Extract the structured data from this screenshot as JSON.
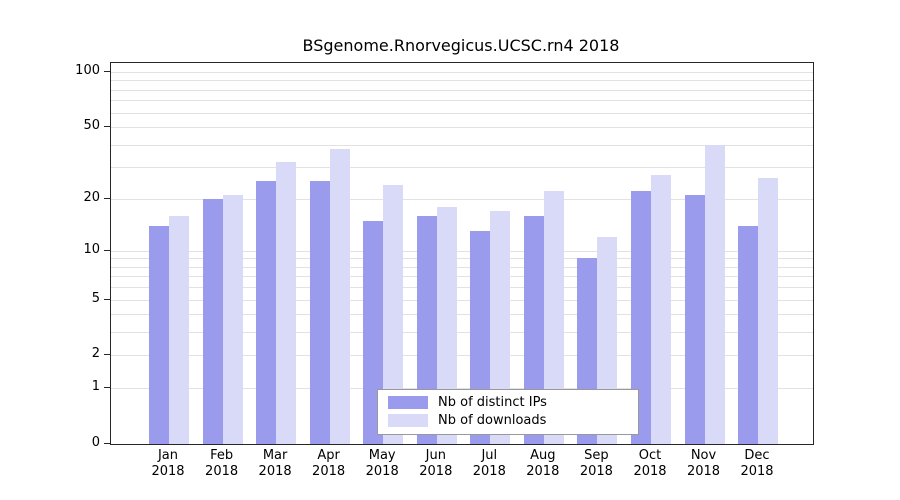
{
  "chart_data": {
    "type": "bar",
    "title": "BSgenome.Rnorvegicus.UCSC.rn4 2018",
    "scale": "log1p",
    "grid": true,
    "legend_position": "bottom-center-inside",
    "categories": [
      "Jan",
      "Feb",
      "Mar",
      "Apr",
      "May",
      "Jun",
      "Jul",
      "Aug",
      "Sep",
      "Oct",
      "Nov",
      "Dec"
    ],
    "x_year_label": "2018",
    "y_ticks": [
      100,
      50,
      20,
      10,
      5,
      2,
      1,
      0
    ],
    "ylim": [
      0,
      110
    ],
    "series": [
      {
        "name": "Nb of distinct IPs",
        "color": "#9b9bee",
        "values": [
          14,
          20,
          25,
          25,
          15,
          16,
          13,
          16,
          9,
          22,
          21,
          14
        ]
      },
      {
        "name": "Nb of downloads",
        "color": "#d9d9f8",
        "values": [
          16,
          21,
          32,
          38,
          24,
          18,
          17,
          22,
          12,
          27,
          40,
          26
        ]
      }
    ]
  },
  "colors": {
    "axis": "#262626",
    "gridline": "#e2e2e2",
    "legend_border": "#999999",
    "background": "#ffffff"
  }
}
